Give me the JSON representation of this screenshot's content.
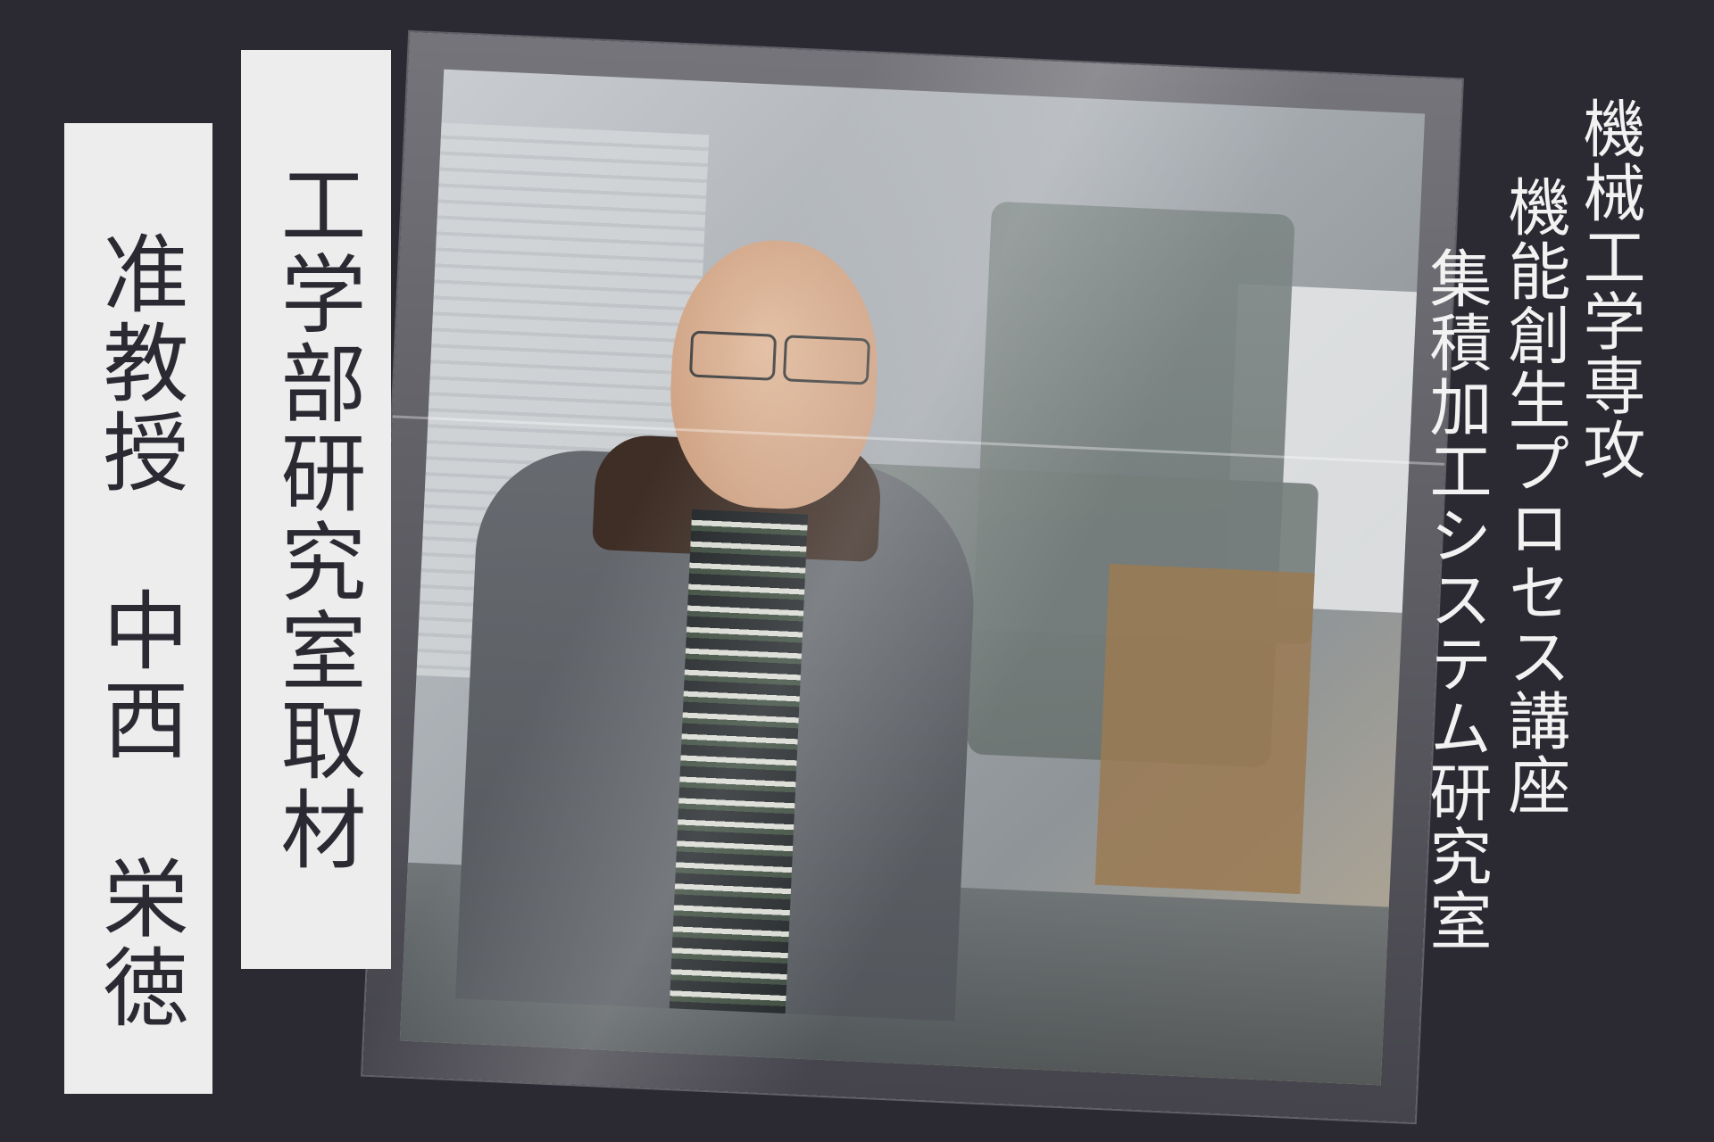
{
  "title_label": "工学部研究室取材",
  "person_label": "准教授　中西　栄徳",
  "department": {
    "line1": "機械工学専攻",
    "line2": "機能創生プロセス講座",
    "line3": "集積加工システム研究室"
  },
  "colors": {
    "background": "#2b2a33",
    "label_background": "#ededed",
    "department_text": "#f2f2f2"
  }
}
